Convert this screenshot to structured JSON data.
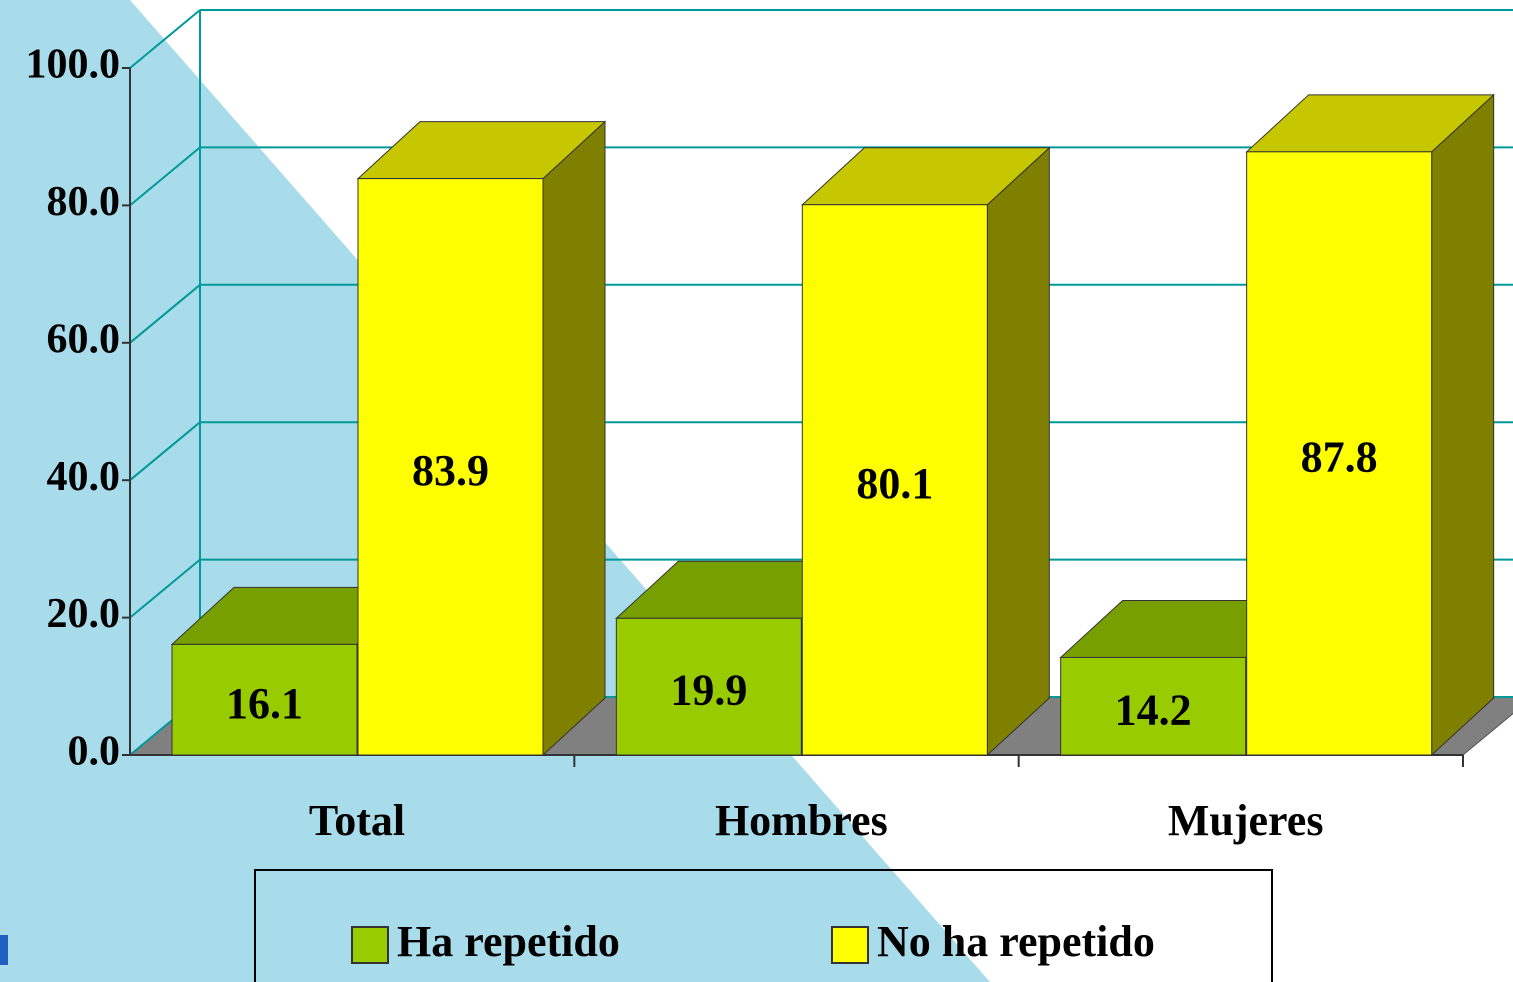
{
  "chart_data": {
    "type": "bar3d",
    "categories": [
      "Total",
      "Hombres",
      "Mujeres"
    ],
    "series": [
      {
        "name": "Ha repetido",
        "color": "#99cc00",
        "values": [
          16.1,
          19.9,
          14.2
        ]
      },
      {
        "name": "No ha repetido",
        "color": "#ffff00",
        "values": [
          83.9,
          80.1,
          87.8
        ]
      }
    ],
    "ylim": [
      0,
      100
    ],
    "yticks": [
      {
        "value": 0,
        "label": "0.0"
      },
      {
        "value": 20,
        "label": "20.0"
      },
      {
        "value": 40,
        "label": "40.0"
      },
      {
        "value": 60,
        "label": "60.0"
      },
      {
        "value": 80,
        "label": "80.0"
      },
      {
        "value": 100,
        "label": "100.0"
      }
    ],
    "grid": true,
    "legend": "bottom"
  }
}
